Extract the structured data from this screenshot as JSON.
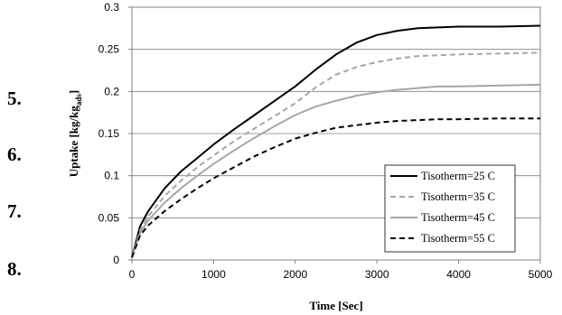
{
  "side_numbers": [
    "5.",
    "6.",
    "7.",
    "8."
  ],
  "chart_data": {
    "type": "line",
    "title": "",
    "xlabel": "Time [Sec]",
    "ylabel_main": "Uptake [kg/kg",
    "ylabel_sub": "ads",
    "ylabel_end": "]",
    "xlim": [
      0,
      5000
    ],
    "ylim": [
      0,
      0.3
    ],
    "xticks": [
      0,
      1000,
      2000,
      3000,
      4000,
      5000
    ],
    "yticks": [
      0,
      0.05,
      0.1,
      0.15,
      0.2,
      0.25,
      0.3
    ],
    "xtick_labels": [
      "0",
      "1000",
      "2000",
      "3000",
      "4000",
      "5000"
    ],
    "ytick_labels": [
      "0",
      "0.05",
      "0.1",
      "0.15",
      "0.2",
      "0.25",
      "0.3"
    ],
    "grid": "horizontal",
    "legend_position": "bottom-right",
    "series": [
      {
        "name": "Tisotherm=25 C",
        "color": "#000000",
        "style": "solid",
        "points": [
          [
            0,
            0.003
          ],
          [
            100,
            0.04
          ],
          [
            200,
            0.058
          ],
          [
            400,
            0.085
          ],
          [
            600,
            0.105
          ],
          [
            800,
            0.121
          ],
          [
            1000,
            0.137
          ],
          [
            1250,
            0.155
          ],
          [
            1500,
            0.172
          ],
          [
            1750,
            0.189
          ],
          [
            2000,
            0.206
          ],
          [
            2250,
            0.226
          ],
          [
            2500,
            0.244
          ],
          [
            2750,
            0.258
          ],
          [
            3000,
            0.267
          ],
          [
            3250,
            0.272
          ],
          [
            3500,
            0.275
          ],
          [
            3750,
            0.276
          ],
          [
            4000,
            0.277
          ],
          [
            4500,
            0.277
          ],
          [
            5000,
            0.278
          ]
        ]
      },
      {
        "name": "Tisotherm=35 C",
        "color": "#a6a6a6",
        "style": "dashed",
        "points": [
          [
            0,
            0.003
          ],
          [
            100,
            0.035
          ],
          [
            200,
            0.052
          ],
          [
            400,
            0.076
          ],
          [
            600,
            0.094
          ],
          [
            800,
            0.11
          ],
          [
            1000,
            0.124
          ],
          [
            1250,
            0.141
          ],
          [
            1500,
            0.156
          ],
          [
            1750,
            0.171
          ],
          [
            2000,
            0.186
          ],
          [
            2250,
            0.205
          ],
          [
            2500,
            0.22
          ],
          [
            2750,
            0.229
          ],
          [
            3000,
            0.235
          ],
          [
            3250,
            0.239
          ],
          [
            3500,
            0.242
          ],
          [
            3750,
            0.243
          ],
          [
            4000,
            0.244
          ],
          [
            4500,
            0.245
          ],
          [
            5000,
            0.246
          ]
        ]
      },
      {
        "name": "Tisotherm=45 C",
        "color": "#a6a6a6",
        "style": "solid",
        "points": [
          [
            0,
            0.003
          ],
          [
            100,
            0.032
          ],
          [
            200,
            0.047
          ],
          [
            400,
            0.068
          ],
          [
            600,
            0.085
          ],
          [
            800,
            0.1
          ],
          [
            1000,
            0.114
          ],
          [
            1250,
            0.13
          ],
          [
            1500,
            0.145
          ],
          [
            1750,
            0.159
          ],
          [
            2000,
            0.172
          ],
          [
            2250,
            0.182
          ],
          [
            2500,
            0.189
          ],
          [
            2750,
            0.195
          ],
          [
            3000,
            0.199
          ],
          [
            3250,
            0.202
          ],
          [
            3500,
            0.204
          ],
          [
            3750,
            0.206
          ],
          [
            4000,
            0.206
          ],
          [
            4500,
            0.207
          ],
          [
            5000,
            0.208
          ]
        ]
      },
      {
        "name": "Tisotherm=55 C",
        "color": "#000000",
        "style": "dashed",
        "points": [
          [
            0,
            0.003
          ],
          [
            100,
            0.029
          ],
          [
            200,
            0.041
          ],
          [
            400,
            0.058
          ],
          [
            600,
            0.072
          ],
          [
            800,
            0.085
          ],
          [
            1000,
            0.097
          ],
          [
            1250,
            0.11
          ],
          [
            1500,
            0.123
          ],
          [
            1750,
            0.134
          ],
          [
            2000,
            0.144
          ],
          [
            2250,
            0.151
          ],
          [
            2500,
            0.157
          ],
          [
            2750,
            0.16
          ],
          [
            3000,
            0.163
          ],
          [
            3250,
            0.165
          ],
          [
            3500,
            0.166
          ],
          [
            3750,
            0.167
          ],
          [
            4000,
            0.167
          ],
          [
            4500,
            0.168
          ],
          [
            5000,
            0.168
          ]
        ]
      }
    ]
  }
}
